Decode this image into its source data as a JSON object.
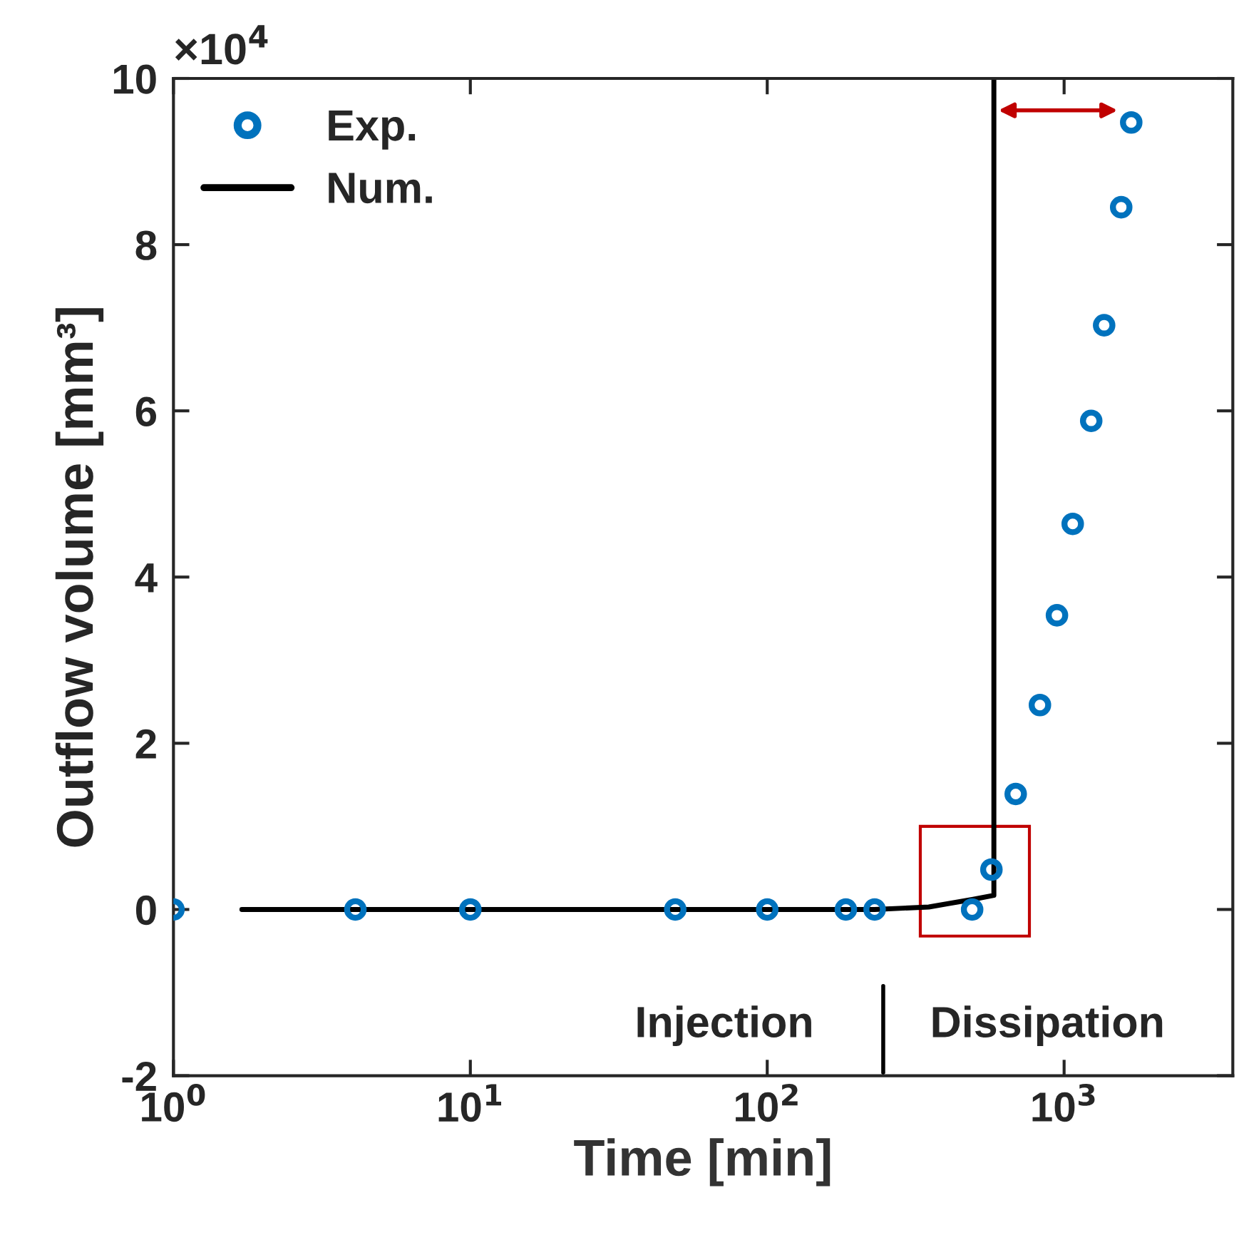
{
  "chart_data": {
    "type": "scatter",
    "xlabel": "Time [min]",
    "ylabel": "Outflow volume [mm³]",
    "log": "x",
    "xlim": [
      1,
      3700
    ],
    "xticks": [
      {
        "value": 1,
        "label": "10$^{0}$"
      },
      {
        "value": 10,
        "label": "10$^{1}$"
      },
      {
        "value": 100,
        "label": "10$^{2}$"
      },
      {
        "value": 1000,
        "label": "10$^{3}$"
      }
    ],
    "ylim": [
      -2,
      10
    ],
    "yticks": [
      {
        "value": -2,
        "label": "-2"
      },
      0,
      2,
      4,
      6,
      8,
      10
    ],
    "grid": false,
    "legend": "top left",
    "series": [
      {
        "name": "Exp.",
        "marker": "circle",
        "color": "#0072bd",
        "x": [
          1,
          4.1,
          10,
          49,
          100,
          184,
          230,
          490,
          569,
          687,
          829,
          946,
          1069,
          1234,
          1364,
          1557,
          1683
        ],
        "values": [
          0,
          0,
          0,
          0,
          0,
          0,
          0,
          0,
          0.48,
          1.39,
          2.46,
          3.54,
          4.64,
          5.88,
          7.03,
          8.45,
          9.47
        ]
      },
      {
        "name": "Num.",
        "type": "line",
        "color": "#000000",
        "x": [
          1.7,
          100,
          230,
          350,
          490,
          580,
          580
        ],
        "values": [
          0,
          0,
          0,
          0.03,
          0.12,
          0.17,
          10
        ]
      }
    ],
    "annotations": [
      "×10$^{4}$",
      "Injection",
      "Dissipation"
    ]
  }
}
